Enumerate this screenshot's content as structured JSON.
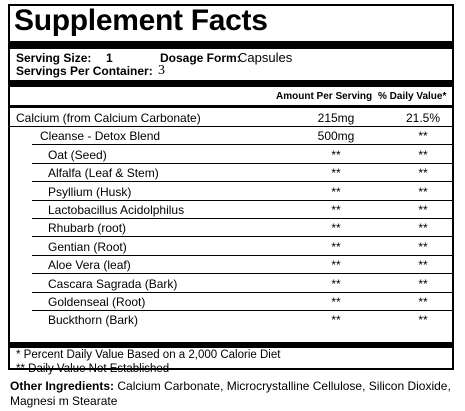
{
  "title": "Supplement Facts",
  "serving": {
    "size_label": "Serving Size:",
    "size_value": "1",
    "form_label": "Dosage Form:",
    "form_value": "Capsules",
    "per_container_label": "Servings Per Container:",
    "per_container_value": "3"
  },
  "columns": {
    "amount": "Amount Per Serving",
    "dv": "% Daily Value*"
  },
  "rows": [
    {
      "name": "Calcium (from Calcium Carbonate)",
      "amount": "215mg",
      "dv": "21.5%"
    },
    {
      "name": "Cleanse - Detox Blend",
      "amount": "500mg",
      "dv": "**"
    },
    {
      "name": "Oat (Seed)",
      "amount": "**",
      "dv": "**"
    },
    {
      "name": "Alfalfa (Leaf & Stem)",
      "amount": "**",
      "dv": "**"
    },
    {
      "name": "Psyllium (Husk)",
      "amount": "**",
      "dv": "**"
    },
    {
      "name": "Lactobacillus Acidolphilus",
      "amount": "**",
      "dv": "**"
    },
    {
      "name": "Rhubarb (root)",
      "amount": "**",
      "dv": "**"
    },
    {
      "name": "Gentian  (Root)",
      "amount": "**",
      "dv": "**"
    },
    {
      "name": "Aloe Vera (leaf)",
      "amount": "**",
      "dv": "**"
    },
    {
      "name": "Cascara Sagrada (Bark)",
      "amount": "**",
      "dv": "**"
    },
    {
      "name": "Goldenseal (Root)",
      "amount": "**",
      "dv": "**"
    },
    {
      "name": "Buckthorn (Bark)",
      "amount": "**",
      "dv": "**"
    }
  ],
  "footnotes": {
    "dv_note": "* Percent Daily Value Based on a 2,000 Calorie Diet",
    "not_established": "** Daily Value Not Established"
  },
  "other_ingredients": {
    "label": "Other Ingredients:",
    "text": " Calcium Carbonate, Microcrystalline Cellulose, Silicon Dioxide, Magnesi  m Stearate"
  }
}
